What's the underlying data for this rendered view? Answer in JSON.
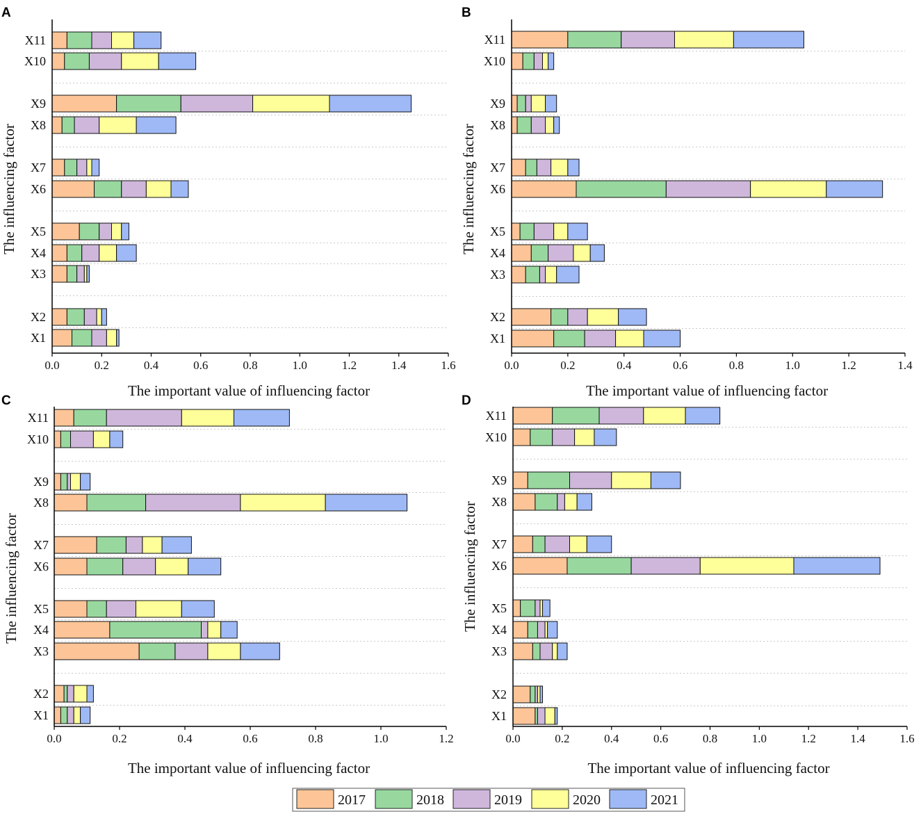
{
  "colors": {
    "2017": "#FDC597",
    "2018": "#98D89F",
    "2019": "#CFB7DC",
    "2020": "#FFFF99",
    "2021": "#9EB9F5"
  },
  "legend": {
    "items": [
      "2017",
      "2018",
      "2019",
      "2020",
      "2021"
    ]
  },
  "chart_data": [
    {
      "panel": "A",
      "type": "bar",
      "stacked": true,
      "orientation": "horizontal",
      "xlabel": "The important value of influencing factor",
      "ylabel": "The influencing factor",
      "xlim": [
        0,
        1.6
      ],
      "xticks": [
        "0.0",
        "0.2",
        "0.4",
        "0.6",
        "0.8",
        "1.0",
        "1.2",
        "1.4",
        "1.6"
      ],
      "categories": [
        "X11",
        "X10",
        "X9",
        "X8",
        "X7",
        "X6",
        "X5",
        "X4",
        "X3",
        "X2",
        "X1"
      ],
      "series": [
        {
          "name": "2017",
          "values": [
            0.06,
            0.05,
            0.26,
            0.04,
            0.05,
            0.17,
            0.11,
            0.06,
            0.06,
            0.06,
            0.08
          ]
        },
        {
          "name": "2018",
          "values": [
            0.1,
            0.1,
            0.26,
            0.05,
            0.05,
            0.11,
            0.08,
            0.06,
            0.04,
            0.07,
            0.08
          ]
        },
        {
          "name": "2019",
          "values": [
            0.08,
            0.13,
            0.29,
            0.1,
            0.04,
            0.1,
            0.05,
            0.07,
            0.03,
            0.05,
            0.06
          ]
        },
        {
          "name": "2020",
          "values": [
            0.09,
            0.15,
            0.31,
            0.15,
            0.02,
            0.1,
            0.04,
            0.07,
            0.01,
            0.02,
            0.04
          ]
        },
        {
          "name": "2021",
          "values": [
            0.11,
            0.15,
            0.33,
            0.16,
            0.03,
            0.07,
            0.03,
            0.08,
            0.01,
            0.02,
            0.01
          ]
        }
      ]
    },
    {
      "panel": "B",
      "type": "bar",
      "stacked": true,
      "orientation": "horizontal",
      "xlabel": "The important value of influencing factor",
      "ylabel": "The influencing factor",
      "xlim": [
        0,
        1.4
      ],
      "xticks": [
        "0.0",
        "0.2",
        "0.4",
        "0.6",
        "0.8",
        "1.0",
        "1.2",
        "1.4"
      ],
      "categories": [
        "X11",
        "X10",
        "X9",
        "X8",
        "X7",
        "X6",
        "X5",
        "X4",
        "X3",
        "X2",
        "X1"
      ],
      "series": [
        {
          "name": "2017",
          "values": [
            0.2,
            0.04,
            0.02,
            0.02,
            0.05,
            0.23,
            0.03,
            0.07,
            0.05,
            0.14,
            0.15
          ]
        },
        {
          "name": "2018",
          "values": [
            0.19,
            0.04,
            0.03,
            0.05,
            0.04,
            0.32,
            0.05,
            0.06,
            0.05,
            0.06,
            0.11
          ]
        },
        {
          "name": "2019",
          "values": [
            0.19,
            0.03,
            0.02,
            0.05,
            0.05,
            0.3,
            0.07,
            0.09,
            0.02,
            0.07,
            0.11
          ]
        },
        {
          "name": "2020",
          "values": [
            0.21,
            0.02,
            0.05,
            0.03,
            0.06,
            0.27,
            0.05,
            0.06,
            0.04,
            0.11,
            0.1
          ]
        },
        {
          "name": "2021",
          "values": [
            0.25,
            0.02,
            0.04,
            0.02,
            0.04,
            0.2,
            0.07,
            0.05,
            0.08,
            0.1,
            0.13
          ]
        }
      ]
    },
    {
      "panel": "C",
      "type": "bar",
      "stacked": true,
      "orientation": "horizontal",
      "xlabel": "The important value of influencing factor",
      "ylabel": "The influencing factor",
      "xlim": [
        0,
        1.2
      ],
      "xticks": [
        "0.0",
        "0.2",
        "0.4",
        "0.6",
        "0.8",
        "1.0",
        "1.2"
      ],
      "categories": [
        "X11",
        "X10",
        "X9",
        "X8",
        "X7",
        "X6",
        "X5",
        "X4",
        "X3",
        "X2",
        "X1"
      ],
      "series": [
        {
          "name": "2017",
          "values": [
            0.06,
            0.02,
            0.02,
            0.1,
            0.13,
            0.1,
            0.1,
            0.17,
            0.26,
            0.03,
            0.02
          ]
        },
        {
          "name": "2018",
          "values": [
            0.1,
            0.03,
            0.02,
            0.18,
            0.09,
            0.11,
            0.06,
            0.28,
            0.11,
            0.01,
            0.02
          ]
        },
        {
          "name": "2019",
          "values": [
            0.23,
            0.07,
            0.01,
            0.29,
            0.05,
            0.1,
            0.09,
            0.02,
            0.1,
            0.02,
            0.02
          ]
        },
        {
          "name": "2020",
          "values": [
            0.16,
            0.05,
            0.03,
            0.26,
            0.06,
            0.1,
            0.14,
            0.04,
            0.1,
            0.04,
            0.02
          ]
        },
        {
          "name": "2021",
          "values": [
            0.17,
            0.04,
            0.03,
            0.25,
            0.09,
            0.1,
            0.1,
            0.05,
            0.12,
            0.02,
            0.03
          ]
        }
      ]
    },
    {
      "panel": "D",
      "type": "bar",
      "stacked": true,
      "orientation": "horizontal",
      "xlabel": "The important value of influencing factor",
      "ylabel": "The influencing factor",
      "xlim": [
        0,
        1.6
      ],
      "xticks": [
        "0.0",
        "0.2",
        "0.4",
        "0.6",
        "0.8",
        "1.0",
        "1.2",
        "1.4",
        "1.6"
      ],
      "categories": [
        "X11",
        "X10",
        "X9",
        "X8",
        "X7",
        "X6",
        "X5",
        "X4",
        "X3",
        "X2",
        "X1"
      ],
      "series": [
        {
          "name": "2017",
          "values": [
            0.16,
            0.07,
            0.06,
            0.09,
            0.08,
            0.22,
            0.03,
            0.06,
            0.08,
            0.07,
            0.09
          ]
        },
        {
          "name": "2018",
          "values": [
            0.19,
            0.09,
            0.17,
            0.09,
            0.05,
            0.26,
            0.06,
            0.04,
            0.03,
            0.02,
            0.01
          ]
        },
        {
          "name": "2019",
          "values": [
            0.18,
            0.09,
            0.17,
            0.03,
            0.1,
            0.28,
            0.02,
            0.03,
            0.05,
            0.01,
            0.03
          ]
        },
        {
          "name": "2020",
          "values": [
            0.17,
            0.08,
            0.16,
            0.05,
            0.07,
            0.38,
            0.01,
            0.01,
            0.02,
            0.01,
            0.04
          ]
        },
        {
          "name": "2021",
          "values": [
            0.14,
            0.09,
            0.12,
            0.06,
            0.1,
            0.35,
            0.03,
            0.04,
            0.04,
            0.01,
            0.01
          ]
        }
      ]
    }
  ]
}
